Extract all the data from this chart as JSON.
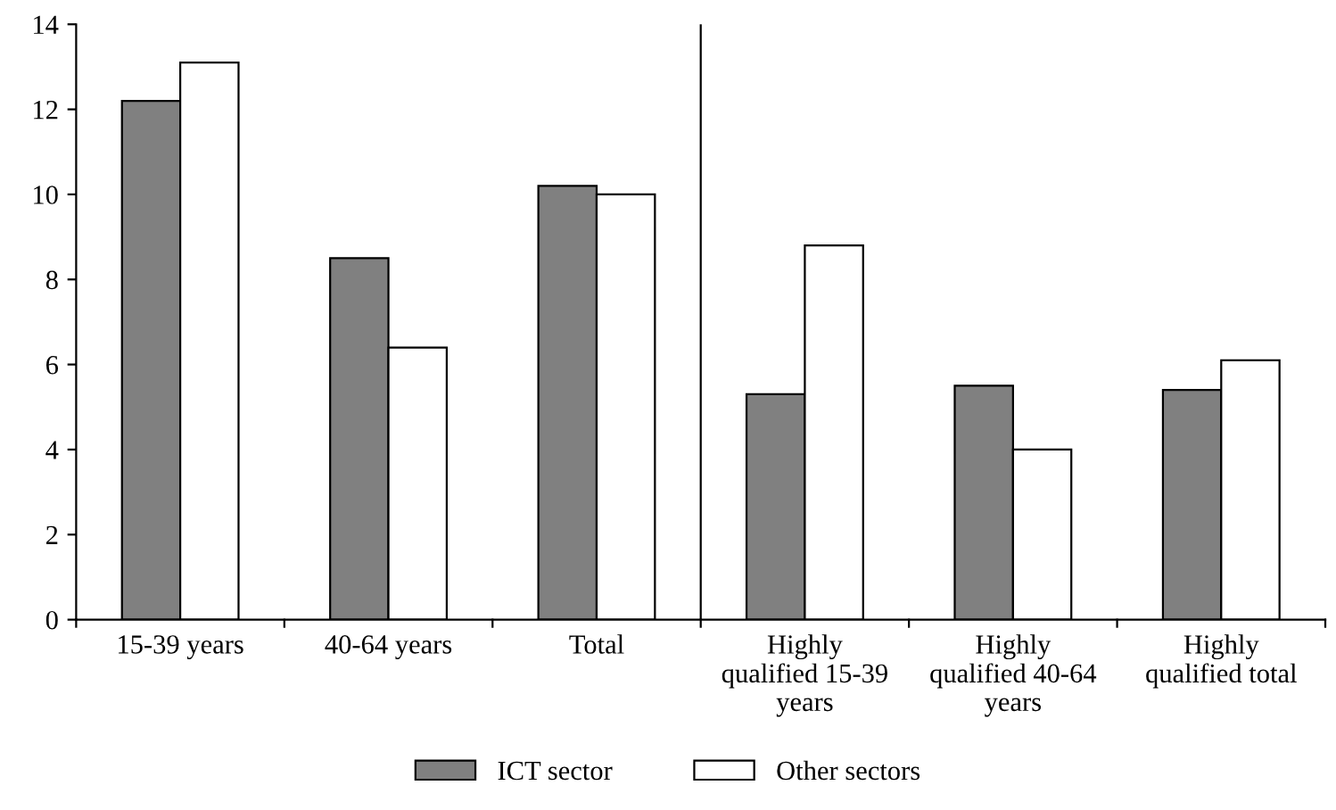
{
  "chart_data": {
    "type": "bar",
    "categories": [
      "15-39 years",
      "40-64 years",
      "Total",
      "Highly qualified 15-39 years",
      "Highly qualified 40-64 years",
      "Highly qualified total"
    ],
    "series": [
      {
        "name": "ICT sector",
        "color": "#808080",
        "values": [
          12.2,
          8.5,
          10.2,
          5.3,
          5.5,
          5.4
        ]
      },
      {
        "name": "Other sectors",
        "color": "#ffffff",
        "values": [
          13.1,
          6.4,
          10.0,
          8.8,
          4.0,
          6.1
        ]
      }
    ],
    "ylim": [
      0,
      14
    ],
    "yticks": [
      0,
      2,
      4,
      6,
      8,
      10,
      12,
      14
    ],
    "grid": false,
    "legend": "bottom"
  }
}
